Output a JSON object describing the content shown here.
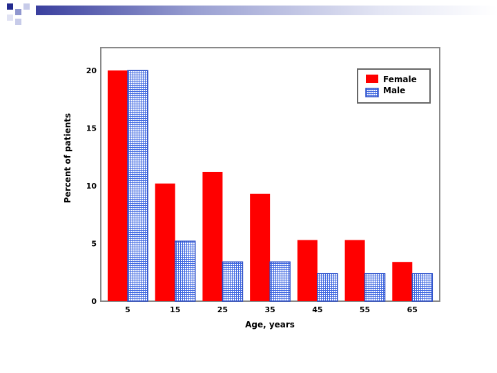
{
  "colors": {
    "female": "#ff0000",
    "male_fill": "#ffffff",
    "male_hatch": "#4169e1",
    "male_border": "#2b4ec8",
    "header_bar_start": "#3a3f9e",
    "frame": "#888888"
  },
  "chart_data": {
    "type": "bar",
    "categories": [
      "5",
      "15",
      "25",
      "35",
      "45",
      "55",
      "65"
    ],
    "series": [
      {
        "name": "Female",
        "values": [
          20,
          10.2,
          11.2,
          9.3,
          5.3,
          5.3,
          3.4
        ]
      },
      {
        "name": "Male",
        "values": [
          20,
          5.2,
          3.4,
          3.4,
          2.4,
          2.4,
          2.4
        ]
      }
    ],
    "xlabel": "Age, years",
    "ylabel": "Percent of patients",
    "yticks": [
      "0",
      "5",
      "10",
      "15",
      "20"
    ],
    "ylim": [
      0,
      20
    ],
    "grid": false,
    "legend": "top-right"
  }
}
